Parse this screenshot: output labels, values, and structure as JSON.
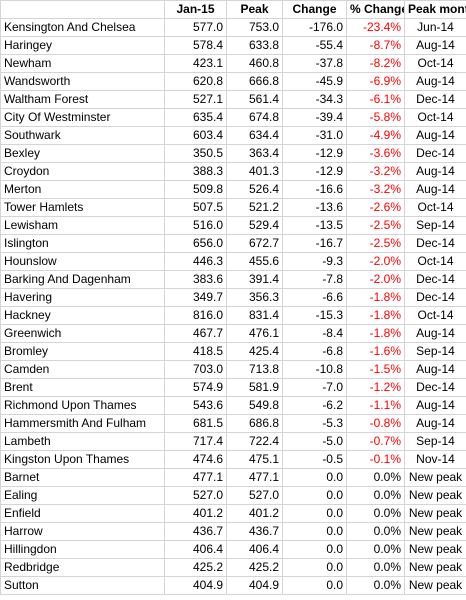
{
  "table": {
    "header": [
      "Jan-15",
      "Peak",
      "Change",
      "% Change",
      "Peak month"
    ],
    "rows": [
      [
        "Kensington And Chelsea",
        "577.0",
        "753.0",
        "-176.0",
        "-23.4%",
        "Jun-14"
      ],
      [
        "Haringey",
        "578.4",
        "633.8",
        "-55.4",
        "-8.7%",
        "Aug-14"
      ],
      [
        "Newham",
        "423.1",
        "460.8",
        "-37.8",
        "-8.2%",
        "Oct-14"
      ],
      [
        "Wandsworth",
        "620.8",
        "666.8",
        "-45.9",
        "-6.9%",
        "Aug-14"
      ],
      [
        "Waltham Forest",
        "527.1",
        "561.4",
        "-34.3",
        "-6.1%",
        "Dec-14"
      ],
      [
        "City Of Westminster",
        "635.4",
        "674.8",
        "-39.4",
        "-5.8%",
        "Oct-14"
      ],
      [
        "Southwark",
        "603.4",
        "634.4",
        "-31.0",
        "-4.9%",
        "Aug-14"
      ],
      [
        "Bexley",
        "350.5",
        "363.4",
        "-12.9",
        "-3.6%",
        "Dec-14"
      ],
      [
        "Croydon",
        "388.3",
        "401.3",
        "-12.9",
        "-3.2%",
        "Aug-14"
      ],
      [
        "Merton",
        "509.8",
        "526.4",
        "-16.6",
        "-3.2%",
        "Aug-14"
      ],
      [
        "Tower Hamlets",
        "507.5",
        "521.2",
        "-13.6",
        "-2.6%",
        "Oct-14"
      ],
      [
        "Lewisham",
        "516.0",
        "529.4",
        "-13.5",
        "-2.5%",
        "Sep-14"
      ],
      [
        "Islington",
        "656.0",
        "672.7",
        "-16.7",
        "-2.5%",
        "Dec-14"
      ],
      [
        "Hounslow",
        "446.3",
        "455.6",
        "-9.3",
        "-2.0%",
        "Oct-14"
      ],
      [
        "Barking And Dagenham",
        "383.6",
        "391.4",
        "-7.8",
        "-2.0%",
        "Dec-14"
      ],
      [
        "Havering",
        "349.7",
        "356.3",
        "-6.6",
        "-1.8%",
        "Dec-14"
      ],
      [
        "Hackney",
        "816.0",
        "831.4",
        "-15.3",
        "-1.8%",
        "Oct-14"
      ],
      [
        "Greenwich",
        "467.7",
        "476.1",
        "-8.4",
        "-1.8%",
        "Aug-14"
      ],
      [
        "Bromley",
        "418.5",
        "425.4",
        "-6.8",
        "-1.6%",
        "Sep-14"
      ],
      [
        "Camden",
        "703.0",
        "713.8",
        "-10.8",
        "-1.5%",
        "Aug-14"
      ],
      [
        "Brent",
        "574.9",
        "581.9",
        "-7.0",
        "-1.2%",
        "Dec-14"
      ],
      [
        "Richmond Upon Thames",
        "543.6",
        "549.8",
        "-6.2",
        "-1.1%",
        "Aug-14"
      ],
      [
        "Hammersmith And Fulham",
        "681.5",
        "686.8",
        "-5.3",
        "-0.8%",
        "Aug-14"
      ],
      [
        "Lambeth",
        "717.4",
        "722.4",
        "-5.0",
        "-0.7%",
        "Sep-14"
      ],
      [
        "Kingston Upon Thames",
        "474.6",
        "475.1",
        "-0.5",
        "-0.1%",
        "Nov-14"
      ],
      [
        "Barnet",
        "477.1",
        "477.1",
        "0.0",
        "0.0%",
        "New peak"
      ],
      [
        "Ealing",
        "527.0",
        "527.0",
        "0.0",
        "0.0%",
        "New peak"
      ],
      [
        "Enfield",
        "401.2",
        "401.2",
        "0.0",
        "0.0%",
        "New peak"
      ],
      [
        "Harrow",
        "436.7",
        "436.7",
        "0.0",
        "0.0%",
        "New peak"
      ],
      [
        "Hillingdon",
        "406.4",
        "406.4",
        "0.0",
        "0.0%",
        "New peak"
      ],
      [
        "Redbridge",
        "425.2",
        "425.2",
        "0.0",
        "0.0%",
        "New peak"
      ],
      [
        "Sutton",
        "404.9",
        "404.9",
        "0.0",
        "0.0%",
        "New peak"
      ]
    ]
  }
}
